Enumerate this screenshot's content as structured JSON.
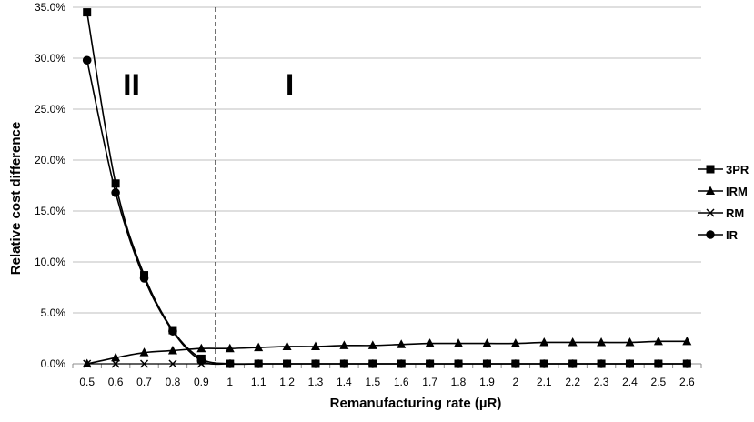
{
  "chart_data": {
    "type": "line",
    "title": "",
    "xlabel": "Remanufacturing rate (µR)",
    "ylabel": "Relative cost difference",
    "ylim": [
      0,
      0.35
    ],
    "yticks": [
      "0.0%",
      "5.0%",
      "10.0%",
      "15.0%",
      "20.0%",
      "25.0%",
      "30.0%",
      "35.0%"
    ],
    "categories": [
      "0.5",
      "0.6",
      "0.7",
      "0.8",
      "0.9",
      "1",
      "1.1",
      "1.2",
      "1.3",
      "1.4",
      "1.5",
      "1.6",
      "1.7",
      "1.8",
      "1.9",
      "2",
      "2.1",
      "2.2",
      "2.3",
      "2.4",
      "2.5",
      "2.6"
    ],
    "grid": true,
    "legend": "right",
    "divider_at": 0.95,
    "regions": [
      {
        "label": "II",
        "at": "0.7"
      },
      {
        "label": "I",
        "at": "1.2"
      }
    ],
    "series": [
      {
        "name": "3PR",
        "marker": "square",
        "values": [
          0.345,
          0.177,
          0.087,
          0.033,
          0.005,
          0,
          0,
          0,
          0,
          0,
          0,
          0,
          0,
          0,
          0,
          0,
          0,
          0,
          0,
          0,
          0,
          0
        ]
      },
      {
        "name": "IRM",
        "marker": "triangle",
        "values": [
          0.0,
          0.006,
          0.011,
          0.013,
          0.015,
          0.015,
          0.016,
          0.017,
          0.017,
          0.018,
          0.018,
          0.019,
          0.02,
          0.02,
          0.02,
          0.02,
          0.021,
          0.021,
          0.021,
          0.021,
          0.022,
          0.022
        ]
      },
      {
        "name": "RM",
        "marker": "x",
        "values": [
          0,
          0,
          0,
          0,
          0,
          0,
          0,
          0,
          0,
          0,
          0,
          0,
          0,
          0,
          0,
          0,
          0,
          0,
          0,
          0,
          0,
          0
        ]
      },
      {
        "name": "IR",
        "marker": "circle",
        "values": [
          0.298,
          0.168,
          0.084,
          0.032,
          0.003,
          0,
          0,
          0,
          0,
          0,
          0,
          0,
          0,
          0,
          0,
          0,
          0,
          0,
          0,
          0,
          0,
          0
        ]
      }
    ]
  }
}
